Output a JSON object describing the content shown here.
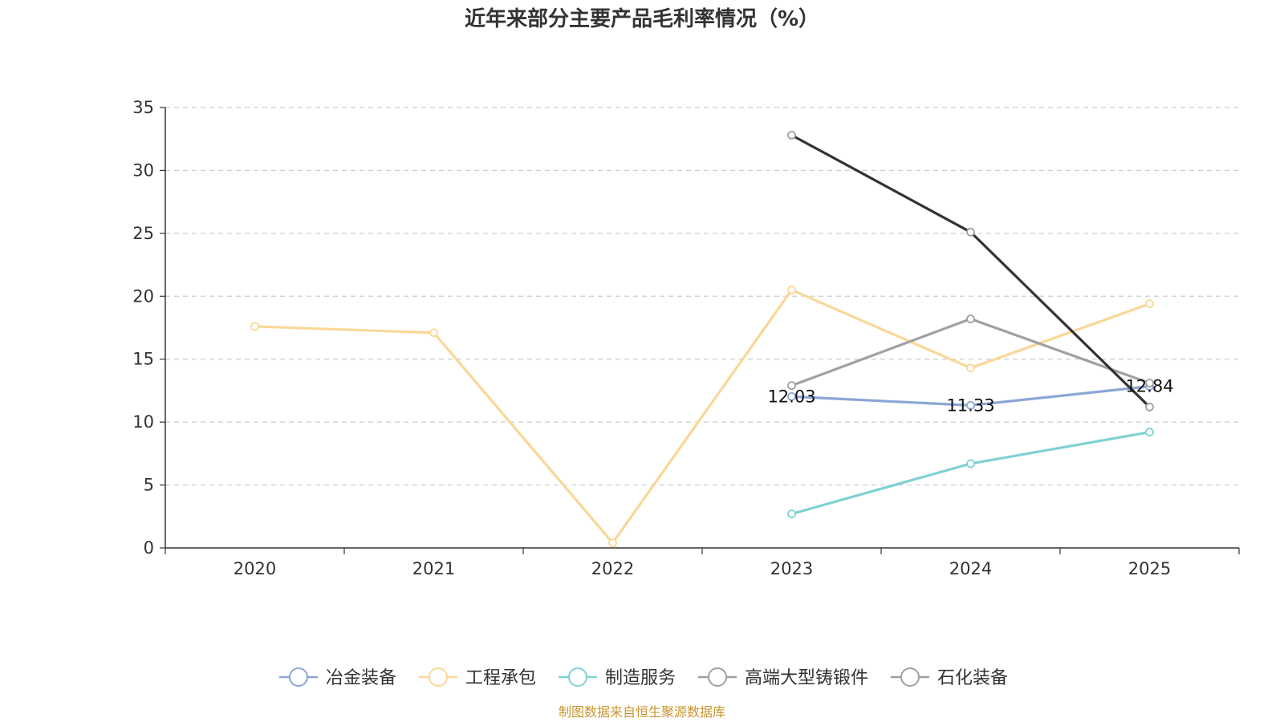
{
  "chart_data": {
    "type": "line",
    "title": "近年来部分主要产品毛利率情况（%）",
    "categories": [
      "2020",
      "2021",
      "2022",
      "2023",
      "2024",
      "2025"
    ],
    "ylim": [
      0,
      35
    ],
    "yticks": [
      "0",
      "5",
      "10",
      "15",
      "20",
      "25",
      "30",
      "35"
    ],
    "grid": true,
    "legend_position": "bottom",
    "series": [
      {
        "name": "冶金装备",
        "color": "#8ba6d6",
        "values": [
          null,
          null,
          null,
          12.03,
          11.33,
          12.84
        ],
        "labels": [
          null,
          null,
          null,
          "12.03",
          "11.33",
          "12.84"
        ]
      },
      {
        "name": "工程承包",
        "color": "#fad797",
        "values": [
          17.6,
          17.1,
          0.4,
          20.5,
          14.3,
          19.4
        ]
      },
      {
        "name": "制造服务",
        "color": "#7fd1d3",
        "values": [
          null,
          null,
          null,
          2.7,
          6.7,
          9.2
        ]
      },
      {
        "name": "高端大型铸锻件",
        "color": "#a0a0a0",
        "values": [
          null,
          null,
          null,
          12.9,
          18.2,
          13.1
        ]
      },
      {
        "name": "石化装备",
        "color": "#333333",
        "legend_color": "#a0a0a0",
        "values": [
          null,
          null,
          null,
          32.8,
          25.1,
          11.2
        ]
      }
    ]
  },
  "source": "制图数据来自恒生聚源数据库"
}
